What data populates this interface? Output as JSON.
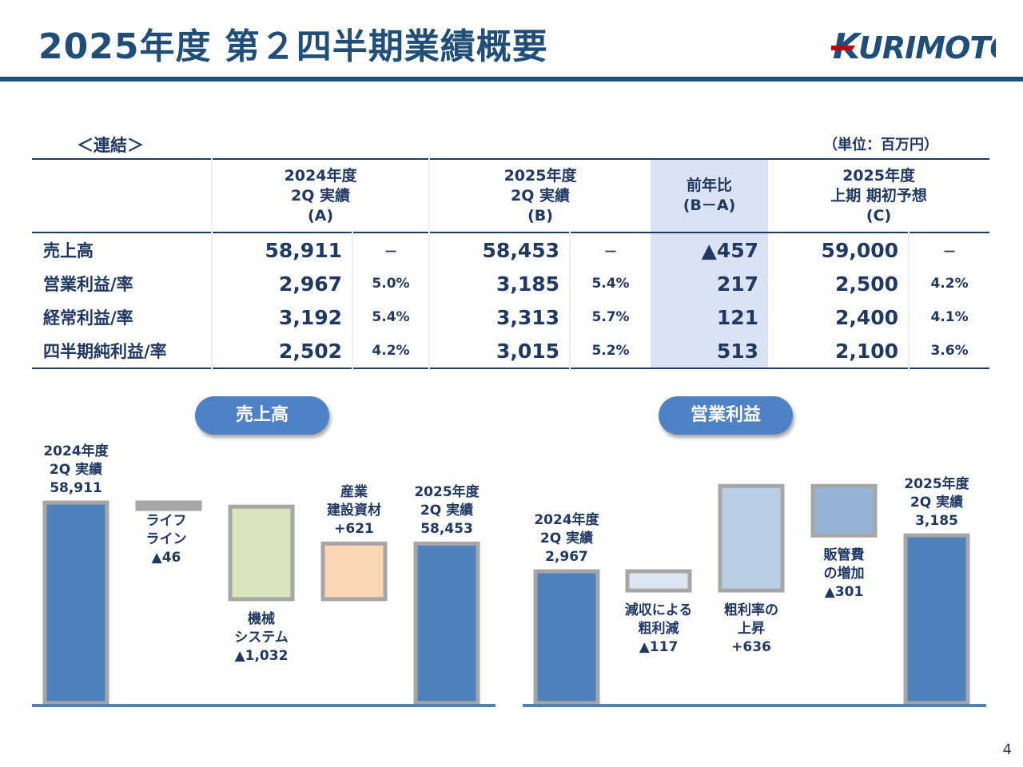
{
  "page": {
    "title": "2025年度 第２四半期業績概要",
    "logo_text": "KURIMOTO",
    "page_number": "4"
  },
  "table": {
    "scope_label": "＜連結＞",
    "unit_label": "（単位：百万円）",
    "headers": [
      {
        "lines": [
          "2024年度",
          "2Q 実績",
          "(A)"
        ]
      },
      {
        "lines": [
          "2025年度",
          "2Q 実績",
          "(B)"
        ]
      },
      {
        "lines": [
          "前年比",
          "(B－A)"
        ]
      },
      {
        "lines": [
          "2025年度",
          "上期 期初予想",
          "(C)"
        ]
      }
    ],
    "rows": [
      {
        "label": "売上高",
        "a": "58,911",
        "a_rate": "－",
        "b": "58,453",
        "b_rate": "－",
        "diff": "▲457",
        "c": "59,000",
        "c_rate": "－"
      },
      {
        "label": "営業利益/率",
        "a": "2,967",
        "a_rate": "5.0%",
        "b": "3,185",
        "b_rate": "5.4%",
        "diff": "217",
        "c": "2,500",
        "c_rate": "4.2%"
      },
      {
        "label": "経常利益/率",
        "a": "3,192",
        "a_rate": "5.4%",
        "b": "3,313",
        "b_rate": "5.7%",
        "diff": "121",
        "c": "2,400",
        "c_rate": "4.1%"
      },
      {
        "label": "四半期純利益/率",
        "a": "2,502",
        "a_rate": "4.2%",
        "b": "3,015",
        "b_rate": "5.2%",
        "diff": "513",
        "c": "2,100",
        "c_rate": "3.6%"
      }
    ]
  },
  "chart_data": [
    {
      "type": "bar",
      "title": "売上高",
      "categories": [
        "2024年度 2Q 実績",
        "ライフライン",
        "機械システム",
        "産業建設資材",
        "2025年度 2Q 実績"
      ],
      "values": [
        58911,
        -46,
        -1032,
        621,
        58453
      ],
      "labels": [
        [
          "2024年度",
          "2Q 実績",
          "58,911"
        ],
        [
          "ライフ",
          "ライン",
          "▲46"
        ],
        [
          "機械",
          "システム",
          "▲1,032"
        ],
        [
          "産業",
          "建設資材",
          "+621"
        ],
        [
          "2025年度",
          "2Q 実績",
          "58,453"
        ]
      ],
      "colors": [
        "#4f81bd",
        "#a6a6a6",
        "#d8e4bc",
        "#fcd5b4",
        "#4f81bd"
      ]
    },
    {
      "type": "bar",
      "title": "営業利益",
      "categories": [
        "2024年度 2Q 実績",
        "減収による粗利減",
        "粗利率の上昇",
        "販管費の増加",
        "2025年度 2Q 実績"
      ],
      "values": [
        2967,
        -117,
        636,
        -301,
        3185
      ],
      "labels": [
        [
          "2024年度",
          "2Q 実績",
          "2,967"
        ],
        [
          "減収による",
          "粗利減",
          "▲117"
        ],
        [
          "粗利率の",
          "上昇",
          "+636"
        ],
        [
          "販管費",
          "の増加",
          "▲301"
        ],
        [
          "2025年度",
          "2Q 実績",
          "3,185"
        ]
      ],
      "colors": [
        "#4f81bd",
        "#dce6f2",
        "#b9cde5",
        "#95b3d7",
        "#4f81bd"
      ]
    }
  ]
}
